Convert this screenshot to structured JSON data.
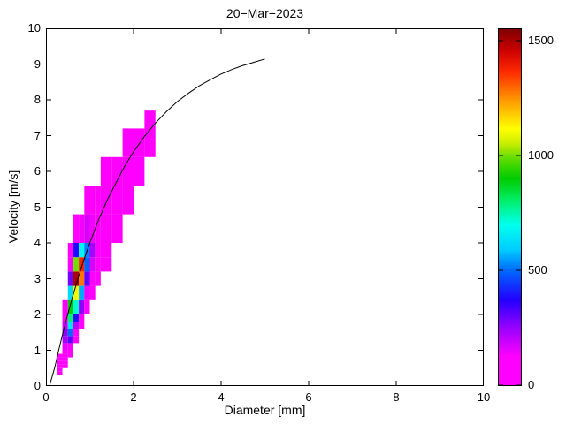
{
  "chart_data": {
    "type": "heatmap",
    "title": "20−Mar−2023",
    "xlabel": "Diameter [mm]",
    "ylabel": "Velocity [m/s]",
    "xlim": [
      0,
      10
    ],
    "ylim": [
      0,
      10
    ],
    "x_ticks": [
      0,
      2,
      4,
      6,
      8,
      10
    ],
    "y_ticks": [
      0,
      1,
      2,
      3,
      4,
      5,
      6,
      7,
      8,
      9,
      10
    ],
    "grid": false,
    "background": "#ffffff",
    "axis_color": "#000000",
    "colorbar": {
      "min": 0,
      "max": 1550,
      "ticks": [
        0,
        500,
        1000,
        1500
      ],
      "colormap": [
        {
          "t": 0.0,
          "c": "#ff00ff"
        },
        {
          "t": 0.08,
          "c": "#ff00ff"
        },
        {
          "t": 0.16,
          "c": "#9900ff"
        },
        {
          "t": 0.24,
          "c": "#2200ff"
        },
        {
          "t": 0.32,
          "c": "#0066ff"
        },
        {
          "t": 0.38,
          "c": "#00ccff"
        },
        {
          "t": 0.45,
          "c": "#00ffee"
        },
        {
          "t": 0.52,
          "c": "#00ee66"
        },
        {
          "t": 0.58,
          "c": "#00cc00"
        },
        {
          "t": 0.64,
          "c": "#66dd00"
        },
        {
          "t": 0.68,
          "c": "#ccee00"
        },
        {
          "t": 0.72,
          "c": "#ffff00"
        },
        {
          "t": 0.8,
          "c": "#ff9900"
        },
        {
          "t": 0.88,
          "c": "#ff2a00"
        },
        {
          "t": 0.94,
          "c": "#cc0000"
        },
        {
          "t": 1.0,
          "c": "#7f0000"
        }
      ]
    },
    "cells_format": [
      "x",
      "y",
      "w",
      "h",
      "value"
    ],
    "cells": [
      [
        0.25,
        0.3,
        0.125,
        0.1,
        15
      ],
      [
        0.25,
        0.4,
        0.125,
        0.1,
        30
      ],
      [
        0.25,
        0.5,
        0.125,
        0.1,
        55
      ],
      [
        0.25,
        0.6,
        0.125,
        0.1,
        60
      ],
      [
        0.25,
        0.7,
        0.125,
        0.1,
        45
      ],
      [
        0.25,
        0.8,
        0.125,
        0.1,
        25
      ],
      [
        0.375,
        0.5,
        0.125,
        0.1,
        20
      ],
      [
        0.375,
        0.6,
        0.125,
        0.1,
        35
      ],
      [
        0.375,
        0.7,
        0.125,
        0.1,
        55
      ],
      [
        0.375,
        0.8,
        0.125,
        0.1,
        75
      ],
      [
        0.375,
        0.9,
        0.125,
        0.1,
        90
      ],
      [
        0.375,
        1.0,
        0.125,
        0.2,
        150
      ],
      [
        0.375,
        1.2,
        0.125,
        0.2,
        230
      ],
      [
        0.375,
        1.4,
        0.125,
        0.2,
        260
      ],
      [
        0.375,
        1.6,
        0.125,
        0.2,
        190
      ],
      [
        0.375,
        1.8,
        0.125,
        0.2,
        80
      ],
      [
        0.375,
        2.0,
        0.125,
        0.4,
        25
      ],
      [
        0.5,
        0.8,
        0.125,
        0.1,
        40
      ],
      [
        0.5,
        0.9,
        0.125,
        0.1,
        60
      ],
      [
        0.5,
        1.0,
        0.125,
        0.2,
        130
      ],
      [
        0.5,
        1.2,
        0.125,
        0.2,
        310
      ],
      [
        0.5,
        1.4,
        0.125,
        0.2,
        500
      ],
      [
        0.5,
        1.6,
        0.125,
        0.2,
        640
      ],
      [
        0.5,
        1.8,
        0.125,
        0.2,
        790
      ],
      [
        0.5,
        2.0,
        0.125,
        0.4,
        900
      ],
      [
        0.5,
        2.4,
        0.125,
        0.4,
        620
      ],
      [
        0.5,
        2.8,
        0.125,
        0.4,
        290
      ],
      [
        0.5,
        3.2,
        0.125,
        0.4,
        90
      ],
      [
        0.5,
        3.6,
        0.125,
        0.4,
        25
      ],
      [
        0.625,
        1.2,
        0.125,
        0.2,
        60
      ],
      [
        0.625,
        1.4,
        0.125,
        0.2,
        120
      ],
      [
        0.625,
        1.6,
        0.125,
        0.2,
        210
      ],
      [
        0.625,
        1.8,
        0.125,
        0.2,
        390
      ],
      [
        0.625,
        2.0,
        0.125,
        0.4,
        720
      ],
      [
        0.625,
        2.4,
        0.125,
        0.4,
        1100
      ],
      [
        0.625,
        2.8,
        0.125,
        0.4,
        1500
      ],
      [
        0.625,
        3.2,
        0.125,
        0.4,
        1000
      ],
      [
        0.625,
        3.6,
        0.125,
        0.4,
        380
      ],
      [
        0.625,
        4.0,
        0.125,
        0.8,
        70
      ],
      [
        0.75,
        1.6,
        0.125,
        0.2,
        35
      ],
      [
        0.75,
        1.8,
        0.125,
        0.2,
        80
      ],
      [
        0.75,
        2.0,
        0.125,
        0.4,
        260
      ],
      [
        0.75,
        2.4,
        0.125,
        0.4,
        560
      ],
      [
        0.75,
        2.8,
        0.125,
        0.4,
        1280
      ],
      [
        0.75,
        3.2,
        0.125,
        0.4,
        1380
      ],
      [
        0.75,
        3.6,
        0.125,
        0.4,
        680
      ],
      [
        0.75,
        4.0,
        0.125,
        0.8,
        140
      ],
      [
        0.875,
        2.0,
        0.125,
        0.4,
        55
      ],
      [
        0.875,
        2.4,
        0.125,
        0.4,
        150
      ],
      [
        0.875,
        2.8,
        0.125,
        0.4,
        310
      ],
      [
        0.875,
        3.2,
        0.125,
        0.4,
        490
      ],
      [
        0.875,
        3.6,
        0.125,
        0.4,
        520
      ],
      [
        0.875,
        4.0,
        0.125,
        0.8,
        170
      ],
      [
        0.875,
        4.8,
        0.125,
        0.8,
        45
      ],
      [
        1.0,
        2.4,
        0.125,
        0.4,
        35
      ],
      [
        1.0,
        2.8,
        0.125,
        0.4,
        90
      ],
      [
        1.0,
        3.2,
        0.125,
        0.4,
        170
      ],
      [
        1.0,
        3.6,
        0.125,
        0.4,
        230
      ],
      [
        1.0,
        4.0,
        0.125,
        0.8,
        140
      ],
      [
        1.0,
        4.8,
        0.125,
        0.8,
        30
      ],
      [
        1.125,
        2.8,
        0.125,
        0.4,
        30
      ],
      [
        1.125,
        3.2,
        0.125,
        0.4,
        60
      ],
      [
        1.125,
        3.6,
        0.125,
        0.4,
        110
      ],
      [
        1.125,
        4.0,
        0.125,
        0.8,
        120
      ],
      [
        1.125,
        4.8,
        0.125,
        0.8,
        40
      ],
      [
        1.25,
        3.2,
        0.25,
        0.4,
        25
      ],
      [
        1.25,
        3.6,
        0.25,
        0.4,
        55
      ],
      [
        1.25,
        4.0,
        0.25,
        0.8,
        90
      ],
      [
        1.25,
        4.8,
        0.25,
        0.8,
        55
      ],
      [
        1.25,
        5.6,
        0.25,
        0.8,
        20
      ],
      [
        1.5,
        4.0,
        0.25,
        0.8,
        40
      ],
      [
        1.5,
        4.8,
        0.25,
        0.8,
        70
      ],
      [
        1.5,
        5.6,
        0.25,
        0.8,
        30
      ],
      [
        1.75,
        4.8,
        0.25,
        0.8,
        30
      ],
      [
        1.75,
        5.6,
        0.25,
        0.8,
        55
      ],
      [
        1.75,
        6.4,
        0.25,
        0.8,
        20
      ],
      [
        2.0,
        5.6,
        0.25,
        0.8,
        25
      ],
      [
        2.0,
        6.4,
        0.25,
        0.8,
        45
      ],
      [
        2.25,
        6.4,
        0.25,
        0.5,
        35
      ],
      [
        2.25,
        6.9,
        0.25,
        0.8,
        18
      ]
    ],
    "line": {
      "name": "terminal-velocity-curve",
      "color": "#000000",
      "points": [
        [
          0.08,
          0.0
        ],
        [
          0.2,
          0.52
        ],
        [
          0.3,
          1.05
        ],
        [
          0.4,
          1.55
        ],
        [
          0.5,
          2.02
        ],
        [
          0.6,
          2.46
        ],
        [
          0.7,
          2.88
        ],
        [
          0.8,
          3.28
        ],
        [
          0.9,
          3.65
        ],
        [
          1.0,
          4.0
        ],
        [
          1.2,
          4.64
        ],
        [
          1.4,
          5.2
        ],
        [
          1.6,
          5.68
        ],
        [
          1.8,
          6.15
        ],
        [
          2.0,
          6.55
        ],
        [
          2.25,
          6.98
        ],
        [
          2.5,
          7.35
        ],
        [
          2.75,
          7.67
        ],
        [
          3.0,
          7.95
        ],
        [
          3.25,
          8.18
        ],
        [
          3.5,
          8.39
        ],
        [
          3.75,
          8.56
        ],
        [
          4.0,
          8.72
        ],
        [
          4.25,
          8.85
        ],
        [
          4.5,
          8.96
        ],
        [
          4.75,
          9.05
        ],
        [
          5.0,
          9.14
        ]
      ]
    }
  }
}
